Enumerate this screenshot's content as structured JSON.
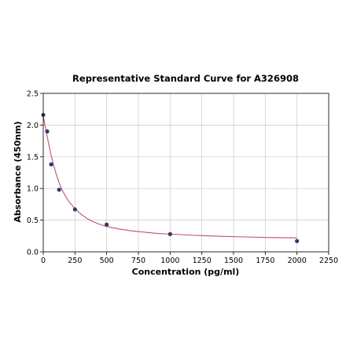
{
  "chart_data": {
    "type": "scatter",
    "title": "Representative Standard Curve for A326908",
    "xlabel": "Concentration (pg/ml)",
    "ylabel": "Absorbance (450nm)",
    "xlim": [
      0,
      2250
    ],
    "ylim": [
      0,
      2.5
    ],
    "x_ticks": [
      0,
      250,
      500,
      750,
      1000,
      1250,
      1500,
      1750,
      2000,
      2250
    ],
    "x_tick_labels": [
      "0",
      "250",
      "500",
      "750",
      "1000",
      "1250",
      "1500",
      "1750",
      "2000",
      "2250"
    ],
    "y_ticks": [
      0.0,
      0.5,
      1.0,
      1.5,
      2.0,
      2.5
    ],
    "y_tick_labels": [
      "0.0",
      "0.5",
      "1.0",
      "1.5",
      "2.0",
      "2.5"
    ],
    "grid": true,
    "series": [
      {
        "points": [
          {
            "x": 0,
            "y": 2.16
          },
          {
            "x": 31.25,
            "y": 1.9
          },
          {
            "x": 62.5,
            "y": 1.38
          },
          {
            "x": 125,
            "y": 0.98
          },
          {
            "x": 250,
            "y": 0.67
          },
          {
            "x": 500,
            "y": 0.43
          },
          {
            "x": 1000,
            "y": 0.28
          },
          {
            "x": 2000,
            "y": 0.17
          }
        ]
      }
    ],
    "fit_curve": {
      "x": [
        0,
        15,
        31.25,
        45,
        62.5,
        80,
        100,
        125,
        150,
        175,
        200,
        250,
        300,
        350,
        400,
        450,
        500,
        600,
        700,
        800,
        900,
        1000,
        1200,
        1400,
        1600,
        1800,
        2000
      ],
      "y": [
        2.15,
        1.98,
        1.82,
        1.68,
        1.52,
        1.38,
        1.24,
        1.09,
        0.97,
        0.88,
        0.8,
        0.68,
        0.59,
        0.52,
        0.47,
        0.43,
        0.4,
        0.36,
        0.33,
        0.31,
        0.29,
        0.28,
        0.26,
        0.245,
        0.235,
        0.225,
        0.22
      ]
    },
    "colors": {
      "marker": "#2e3a6e",
      "curve": "#c0506e",
      "grid": "#c8c8c8",
      "axis": "#000000"
    }
  }
}
